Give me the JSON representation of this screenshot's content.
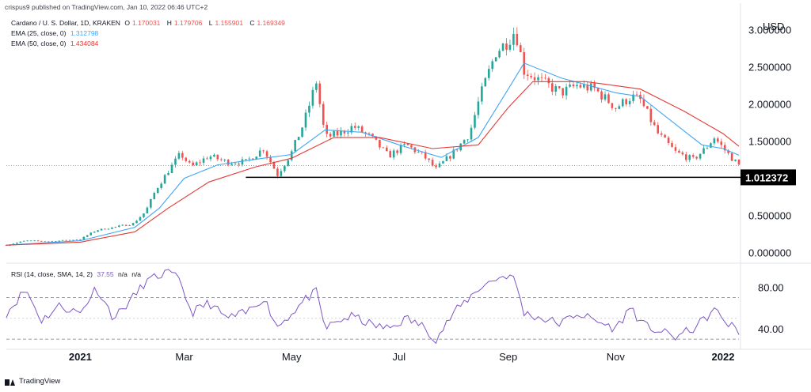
{
  "header": {
    "published": "crispus9 published on TradingView.com, Jan 10, 2022 06:46 UTC+2"
  },
  "legend": {
    "symbol": "Cardano / U. S. Dollar, 1D, KRAKEN",
    "ohlc": [
      {
        "key": "O",
        "value": "1.170031"
      },
      {
        "key": "H",
        "value": "1.179706"
      },
      {
        "key": "L",
        "value": "1.155901"
      },
      {
        "key": "C",
        "value": "1.169349"
      }
    ],
    "ema25_label": "EMA (25, close, 0)",
    "ema25_value": "1.312798",
    "ema50_label": "EMA (50, close, 0)",
    "ema50_value": "1.434084",
    "rsi_label": "RSI (14, close, SMA, 14, 2)",
    "rsi_value": "37.55",
    "rsi_na1": "n/a",
    "rsi_na2": "n/a"
  },
  "footer": {
    "brand": "TradingView"
  },
  "colors": {
    "up": "#26a69a",
    "down": "#ef5350",
    "ema25": "#42a5f5",
    "ema50": "#e53935",
    "rsi": "#7e57c2",
    "support": "#000000",
    "axis_text": "#131722"
  },
  "chart_data": [
    {
      "type": "candlestick",
      "title": "Cardano / U. S. Dollar, 1D, KRAKEN",
      "currency": "USD",
      "x_ticks": [
        "2021",
        "Mar",
        "May",
        "Jul",
        "Sep",
        "Nov",
        "2022"
      ],
      "x_range": [
        "2020-11-20",
        "2022-01-10"
      ],
      "y_ticks": [
        "3.000000",
        "2.500000",
        "2.000000",
        "1.500000",
        "1.000000",
        "0.500000",
        "0.000000"
      ],
      "ylim": [
        -0.1,
        3.25
      ],
      "support_line": {
        "value": 1.012372,
        "label": "1.012372",
        "from": "2021-04-05"
      },
      "price_line": 1.169349,
      "series": [
        {
          "name": "Cardano / U. S. Dollar",
          "kind": "close",
          "points": [
            [
              "2020-11-20",
              0.1
            ],
            [
              "2020-12-01",
              0.16
            ],
            [
              "2020-12-15",
              0.15
            ],
            [
              "2021-01-01",
              0.18
            ],
            [
              "2021-01-10",
              0.3
            ],
            [
              "2021-01-20",
              0.34
            ],
            [
              "2021-01-31",
              0.39
            ],
            [
              "2021-02-07",
              0.55
            ],
            [
              "2021-02-13",
              0.85
            ],
            [
              "2021-02-20",
              1.1
            ],
            [
              "2021-02-27",
              1.33
            ],
            [
              "2021-03-05",
              1.15
            ],
            [
              "2021-03-15",
              1.3
            ],
            [
              "2021-03-25",
              1.22
            ],
            [
              "2021-04-05",
              1.22
            ],
            [
              "2021-04-15",
              1.4
            ],
            [
              "2021-04-23",
              1.05
            ],
            [
              "2021-05-01",
              1.35
            ],
            [
              "2021-05-08",
              1.75
            ],
            [
              "2021-05-15",
              2.3
            ],
            [
              "2021-05-20",
              1.55
            ],
            [
              "2021-05-28",
              1.6
            ],
            [
              "2021-06-05",
              1.7
            ],
            [
              "2021-06-15",
              1.55
            ],
            [
              "2021-06-25",
              1.3
            ],
            [
              "2021-07-05",
              1.45
            ],
            [
              "2021-07-15",
              1.3
            ],
            [
              "2021-07-22",
              1.12
            ],
            [
              "2021-08-01",
              1.35
            ],
            [
              "2021-08-10",
              1.6
            ],
            [
              "2021-08-16",
              2.1
            ],
            [
              "2021-08-25",
              2.7
            ],
            [
              "2021-09-01",
              2.85
            ],
            [
              "2021-09-05",
              3.0
            ],
            [
              "2021-09-10",
              2.45
            ],
            [
              "2021-09-20",
              2.3
            ],
            [
              "2021-10-01",
              2.15
            ],
            [
              "2021-10-10",
              2.25
            ],
            [
              "2021-10-20",
              2.2
            ],
            [
              "2021-11-01",
              1.95
            ],
            [
              "2021-11-10",
              2.1
            ],
            [
              "2021-11-15",
              2.05
            ],
            [
              "2021-11-25",
              1.6
            ],
            [
              "2021-12-05",
              1.35
            ],
            [
              "2021-12-15",
              1.25
            ],
            [
              "2021-12-22",
              1.4
            ],
            [
              "2021-12-27",
              1.55
            ],
            [
              "2022-01-03",
              1.35
            ],
            [
              "2022-01-10",
              1.17
            ]
          ]
        },
        {
          "name": "EMA (25, close, 0)",
          "kind": "line",
          "points": [
            [
              "2020-11-20",
              0.1
            ],
            [
              "2021-01-01",
              0.16
            ],
            [
              "2021-02-01",
              0.34
            ],
            [
              "2021-02-15",
              0.6
            ],
            [
              "2021-03-01",
              1.0
            ],
            [
              "2021-03-20",
              1.18
            ],
            [
              "2021-04-15",
              1.27
            ],
            [
              "2021-05-01",
              1.32
            ],
            [
              "2021-05-20",
              1.65
            ],
            [
              "2021-06-10",
              1.62
            ],
            [
              "2021-07-01",
              1.45
            ],
            [
              "2021-07-25",
              1.28
            ],
            [
              "2021-08-15",
              1.55
            ],
            [
              "2021-09-01",
              2.2
            ],
            [
              "2021-09-10",
              2.55
            ],
            [
              "2021-10-01",
              2.35
            ],
            [
              "2021-11-01",
              2.15
            ],
            [
              "2021-11-15",
              2.1
            ],
            [
              "2021-12-01",
              1.8
            ],
            [
              "2021-12-20",
              1.45
            ],
            [
              "2022-01-01",
              1.4
            ],
            [
              "2022-01-10",
              1.31
            ]
          ]
        },
        {
          "name": "EMA (50, close, 0)",
          "kind": "line",
          "points": [
            [
              "2020-11-20",
              0.1
            ],
            [
              "2021-01-01",
              0.14
            ],
            [
              "2021-02-01",
              0.28
            ],
            [
              "2021-02-20",
              0.6
            ],
            [
              "2021-03-15",
              0.95
            ],
            [
              "2021-04-10",
              1.15
            ],
            [
              "2021-05-01",
              1.27
            ],
            [
              "2021-05-25",
              1.55
            ],
            [
              "2021-06-20",
              1.55
            ],
            [
              "2021-07-20",
              1.4
            ],
            [
              "2021-08-15",
              1.45
            ],
            [
              "2021-09-01",
              1.95
            ],
            [
              "2021-09-15",
              2.3
            ],
            [
              "2021-10-15",
              2.3
            ],
            [
              "2021-11-15",
              2.2
            ],
            [
              "2021-12-10",
              1.9
            ],
            [
              "2022-01-01",
              1.6
            ],
            [
              "2022-01-10",
              1.43
            ]
          ]
        }
      ]
    },
    {
      "type": "line",
      "title": "RSI (14, close, SMA, 14, 2)",
      "y_ticks": [
        "80.00",
        "40.00"
      ],
      "ylim": [
        24,
        100
      ],
      "bands": [
        70,
        30
      ],
      "midline": 50,
      "series": [
        {
          "name": "RSI",
          "points": [
            [
              "2020-11-20",
              55
            ],
            [
              "2020-12-01",
              78
            ],
            [
              "2020-12-10",
              48
            ],
            [
              "2020-12-20",
              62
            ],
            [
              "2021-01-01",
              55
            ],
            [
              "2021-01-10",
              80
            ],
            [
              "2021-01-20",
              50
            ],
            [
              "2021-01-31",
              70
            ],
            [
              "2021-02-07",
              85
            ],
            [
              "2021-02-20",
              95
            ],
            [
              "2021-02-27",
              85
            ],
            [
              "2021-03-05",
              55
            ],
            [
              "2021-03-15",
              65
            ],
            [
              "2021-03-25",
              50
            ],
            [
              "2021-04-05",
              55
            ],
            [
              "2021-04-15",
              70
            ],
            [
              "2021-04-23",
              42
            ],
            [
              "2021-05-01",
              55
            ],
            [
              "2021-05-10",
              70
            ],
            [
              "2021-05-15",
              75
            ],
            [
              "2021-05-20",
              40
            ],
            [
              "2021-05-28",
              48
            ],
            [
              "2021-06-05",
              52
            ],
            [
              "2021-06-15",
              44
            ],
            [
              "2021-06-25",
              40
            ],
            [
              "2021-07-05",
              50
            ],
            [
              "2021-07-15",
              42
            ],
            [
              "2021-07-22",
              30
            ],
            [
              "2021-08-01",
              55
            ],
            [
              "2021-08-10",
              70
            ],
            [
              "2021-08-16",
              80
            ],
            [
              "2021-08-25",
              88
            ],
            [
              "2021-09-01",
              92
            ],
            [
              "2021-09-05",
              86
            ],
            [
              "2021-09-10",
              55
            ],
            [
              "2021-09-20",
              50
            ],
            [
              "2021-10-01",
              45
            ],
            [
              "2021-10-10",
              55
            ],
            [
              "2021-10-20",
              48
            ],
            [
              "2021-11-01",
              40
            ],
            [
              "2021-11-10",
              62
            ],
            [
              "2021-11-15",
              45
            ],
            [
              "2021-11-25",
              38
            ],
            [
              "2021-12-05",
              32
            ],
            [
              "2021-12-15",
              40
            ],
            [
              "2021-12-22",
              50
            ],
            [
              "2021-12-27",
              58
            ],
            [
              "2022-01-03",
              46
            ],
            [
              "2022-01-10",
              37.55
            ]
          ]
        }
      ]
    }
  ]
}
